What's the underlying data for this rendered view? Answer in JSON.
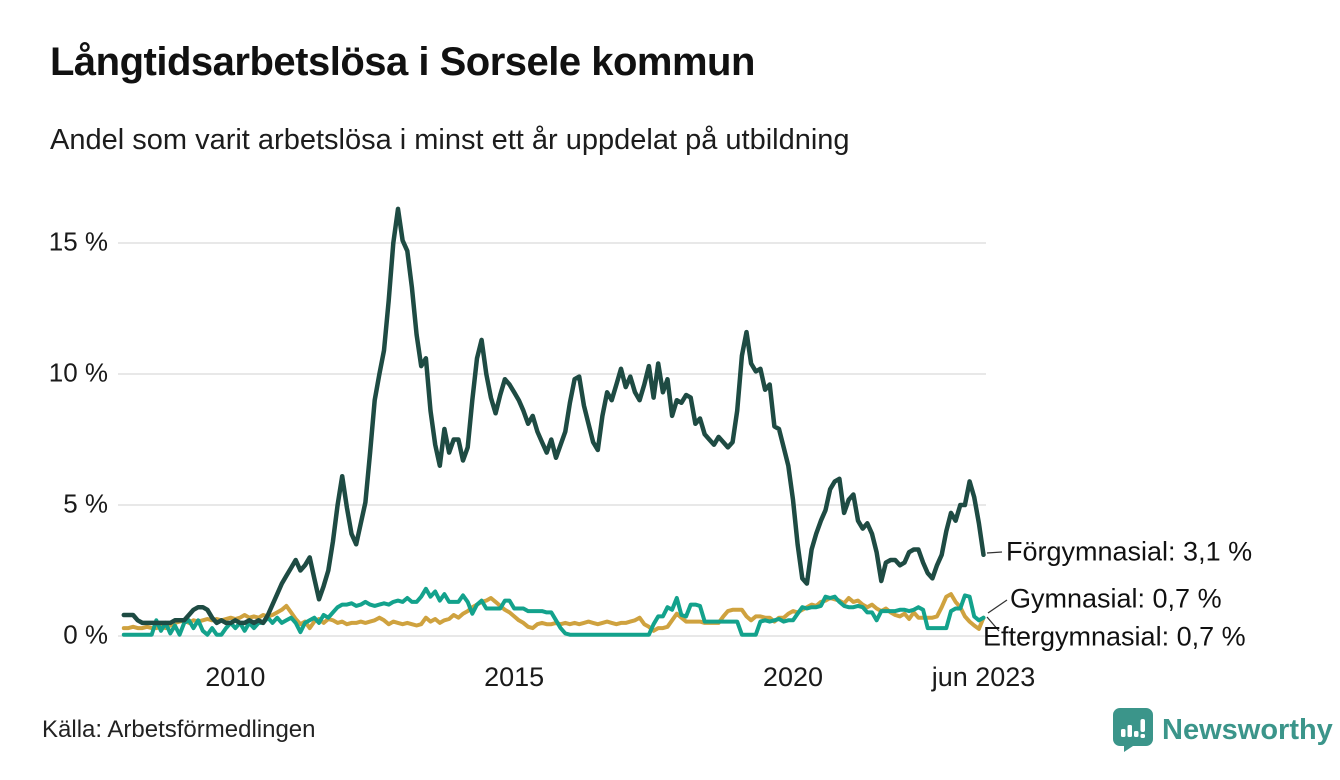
{
  "header": {
    "title": "Långtidsarbetslösa i Sorsele kommun",
    "subtitle": "Andel som varit arbetslösa i minst ett år uppdelat på utbildning"
  },
  "chart_data": {
    "type": "line",
    "title": "Långtidsarbetslösa i Sorsele kommun",
    "subtitle": "Andel som varit arbetslösa i minst ett år uppdelat på utbildning",
    "unit": "%",
    "frequency": "monthly",
    "x_start": "2008-01",
    "x_end": "2023-06",
    "grid": true,
    "legend_position": "right-end-labels",
    "y_axis": {
      "range": [
        0,
        16.5
      ],
      "ticks": [
        {
          "value": 0,
          "label": "0 %"
        },
        {
          "value": 5,
          "label": "5 %"
        },
        {
          "value": 10,
          "label": "10 %"
        },
        {
          "value": 15,
          "label": "15 %"
        }
      ]
    },
    "x_axis": {
      "ticks": [
        {
          "month_index": 24,
          "label": "2010"
        },
        {
          "month_index": 84,
          "label": "2015"
        },
        {
          "month_index": 144,
          "label": "2020"
        },
        {
          "month_index": 185,
          "label": "jun 2023"
        }
      ]
    },
    "series": [
      {
        "name": "Förgymnasial",
        "end_value": "3,1 %",
        "end_label": "Förgymnasial: 3,1 %",
        "color": "#1e4b43",
        "values": [
          0.8,
          0.8,
          0.8,
          0.6,
          0.5,
          0.5,
          0.5,
          0.5,
          0.5,
          0.5,
          0.5,
          0.6,
          0.6,
          0.6,
          0.8,
          1.0,
          1.1,
          1.1,
          1.0,
          0.7,
          0.5,
          0.6,
          0.5,
          0.5,
          0.6,
          0.5,
          0.5,
          0.6,
          0.5,
          0.6,
          0.5,
          0.8,
          1.2,
          1.6,
          2.0,
          2.3,
          2.6,
          2.9,
          2.5,
          2.7,
          3.0,
          2.2,
          1.4,
          1.9,
          2.5,
          3.6,
          5.0,
          6.1,
          4.9,
          3.9,
          3.5,
          4.3,
          5.1,
          7.0,
          9.0,
          10.0,
          10.9,
          12.8,
          15.0,
          16.3,
          15.1,
          14.7,
          13.3,
          11.5,
          10.3,
          10.6,
          8.6,
          7.3,
          6.5,
          7.9,
          7.0,
          7.5,
          7.5,
          6.7,
          7.2,
          9.0,
          10.6,
          11.3,
          10.0,
          9.1,
          8.5,
          9.2,
          9.8,
          9.6,
          9.3,
          9.0,
          8.6,
          8.1,
          8.4,
          7.8,
          7.4,
          7.0,
          7.5,
          6.8,
          7.3,
          7.8,
          8.9,
          9.8,
          9.9,
          8.8,
          8.1,
          7.4,
          7.1,
          8.4,
          9.3,
          9.0,
          9.6,
          10.2,
          9.5,
          9.9,
          9.3,
          9.0,
          9.6,
          10.3,
          9.1,
          10.4,
          9.3,
          9.8,
          8.4,
          9.0,
          8.9,
          9.2,
          9.1,
          8.1,
          8.3,
          7.7,
          7.5,
          7.3,
          7.6,
          7.4,
          7.2,
          7.4,
          8.6,
          10.7,
          11.6,
          10.4,
          10.1,
          10.2,
          9.4,
          9.6,
          8.0,
          7.9,
          7.2,
          6.5,
          5.2,
          3.5,
          2.2,
          2.0,
          3.3,
          3.9,
          4.4,
          4.8,
          5.6,
          5.9,
          6.0,
          4.7,
          5.2,
          5.4,
          4.4,
          4.1,
          4.3,
          3.9,
          3.2,
          2.1,
          2.8,
          2.9,
          2.9,
          2.7,
          2.8,
          3.2,
          3.3,
          3.3,
          2.8,
          2.4,
          2.2,
          2.7,
          3.1,
          4.0,
          4.7,
          4.4,
          5.0,
          5.0,
          5.9,
          5.3,
          4.3,
          3.1
        ]
      },
      {
        "name": "Gymnasial",
        "end_value": "0,7 %",
        "end_label": "Gymnasial: 0,7 %",
        "color": "#13a28c",
        "values": [
          0.05,
          0.05,
          0.05,
          0.05,
          0.05,
          0.05,
          0.05,
          0.6,
          0.2,
          0.5,
          0.1,
          0.4,
          0.05,
          0.5,
          0.6,
          0.3,
          0.6,
          0.2,
          0.05,
          0.3,
          0.05,
          0.05,
          0.3,
          0.5,
          0.3,
          0.5,
          0.2,
          0.5,
          0.3,
          0.5,
          0.5,
          0.7,
          0.5,
          0.7,
          0.5,
          0.6,
          0.7,
          0.5,
          0.15,
          0.5,
          0.6,
          0.7,
          0.5,
          0.8,
          0.7,
          0.9,
          1.1,
          1.2,
          1.2,
          1.25,
          1.15,
          1.2,
          1.3,
          1.2,
          1.15,
          1.2,
          1.25,
          1.2,
          1.3,
          1.35,
          1.3,
          1.45,
          1.3,
          1.3,
          1.5,
          1.8,
          1.5,
          1.7,
          1.35,
          1.6,
          1.3,
          1.3,
          1.3,
          1.55,
          1.3,
          0.85,
          1.2,
          1.35,
          1.05,
          1.05,
          1.05,
          1.05,
          1.35,
          1.35,
          1.05,
          1.05,
          1.05,
          0.95,
          0.95,
          0.95,
          0.95,
          0.9,
          0.9,
          0.6,
          0.3,
          0.1,
          0.05,
          0.05,
          0.05,
          0.05,
          0.05,
          0.05,
          0.05,
          0.05,
          0.05,
          0.05,
          0.05,
          0.05,
          0.05,
          0.05,
          0.05,
          0.05,
          0.05,
          0.05,
          0.45,
          0.75,
          0.75,
          1.1,
          1.0,
          1.45,
          0.8,
          0.75,
          1.2,
          1.2,
          1.15,
          0.55,
          0.55,
          0.55,
          0.55,
          0.55,
          0.55,
          0.55,
          0.55,
          0.05,
          0.05,
          0.05,
          0.05,
          0.55,
          0.6,
          0.55,
          0.6,
          0.65,
          0.55,
          0.6,
          0.6,
          0.85,
          1.1,
          1.05,
          1.1,
          1.1,
          1.15,
          1.5,
          1.45,
          1.5,
          1.3,
          1.15,
          1.1,
          1.1,
          1.15,
          1.1,
          0.9,
          0.9,
          0.6,
          0.95,
          0.95,
          0.95,
          0.95,
          1.0,
          1.0,
          0.95,
          1.0,
          1.1,
          1.0,
          0.3,
          0.3,
          0.3,
          0.3,
          0.3,
          0.95,
          1.05,
          1.05,
          1.55,
          1.5,
          0.75,
          0.6,
          0.7
        ]
      },
      {
        "name": "Eftergymnasial",
        "end_value": "0,7 %",
        "end_label": "Eftergymnasial: 0,7 %",
        "color": "#cfa23f",
        "values": [
          0.3,
          0.3,
          0.35,
          0.3,
          0.3,
          0.35,
          0.3,
          0.3,
          0.35,
          0.3,
          0.4,
          0.5,
          0.55,
          0.6,
          0.5,
          0.6,
          0.55,
          0.6,
          0.65,
          0.6,
          0.65,
          0.6,
          0.65,
          0.7,
          0.65,
          0.7,
          0.8,
          0.7,
          0.75,
          0.7,
          0.8,
          0.75,
          0.8,
          0.9,
          1.0,
          1.15,
          0.9,
          0.65,
          0.45,
          0.55,
          0.3,
          0.55,
          0.65,
          0.5,
          0.65,
          0.6,
          0.5,
          0.55,
          0.45,
          0.5,
          0.5,
          0.55,
          0.5,
          0.55,
          0.6,
          0.7,
          0.6,
          0.45,
          0.55,
          0.5,
          0.45,
          0.5,
          0.45,
          0.4,
          0.45,
          0.7,
          0.55,
          0.65,
          0.5,
          0.6,
          0.65,
          0.8,
          0.7,
          0.85,
          0.95,
          1.1,
          1.2,
          1.3,
          1.35,
          1.45,
          1.3,
          1.15,
          1.0,
          0.9,
          0.75,
          0.6,
          0.5,
          0.35,
          0.3,
          0.45,
          0.5,
          0.45,
          0.45,
          0.5,
          0.45,
          0.5,
          0.45,
          0.5,
          0.45,
          0.5,
          0.55,
          0.5,
          0.45,
          0.5,
          0.55,
          0.5,
          0.45,
          0.5,
          0.5,
          0.55,
          0.6,
          0.7,
          0.45,
          0.35,
          0.2,
          0.3,
          0.3,
          0.35,
          0.6,
          0.85,
          0.7,
          0.55,
          0.55,
          0.55,
          0.55,
          0.5,
          0.5,
          0.5,
          0.5,
          0.75,
          0.95,
          1.0,
          1.0,
          1.0,
          0.75,
          0.6,
          0.75,
          0.75,
          0.7,
          0.7,
          0.55,
          0.7,
          0.7,
          0.85,
          0.95,
          0.9,
          1.0,
          1.1,
          1.2,
          1.15,
          1.3,
          1.35,
          1.45,
          1.4,
          1.35,
          1.25,
          1.45,
          1.3,
          1.35,
          1.2,
          1.1,
          1.2,
          1.05,
          0.95,
          1.05,
          0.9,
          0.8,
          0.75,
          0.85,
          0.65,
          0.9,
          0.7,
          0.7,
          0.7,
          0.7,
          0.75,
          1.1,
          1.5,
          1.6,
          1.3,
          1.1,
          0.75,
          0.55,
          0.4,
          0.27,
          0.7
        ]
      }
    ]
  },
  "footer": {
    "source": "Källa: Arbetsförmedlingen",
    "brand": "Newsworthy",
    "brand_color": "#3b958a"
  }
}
